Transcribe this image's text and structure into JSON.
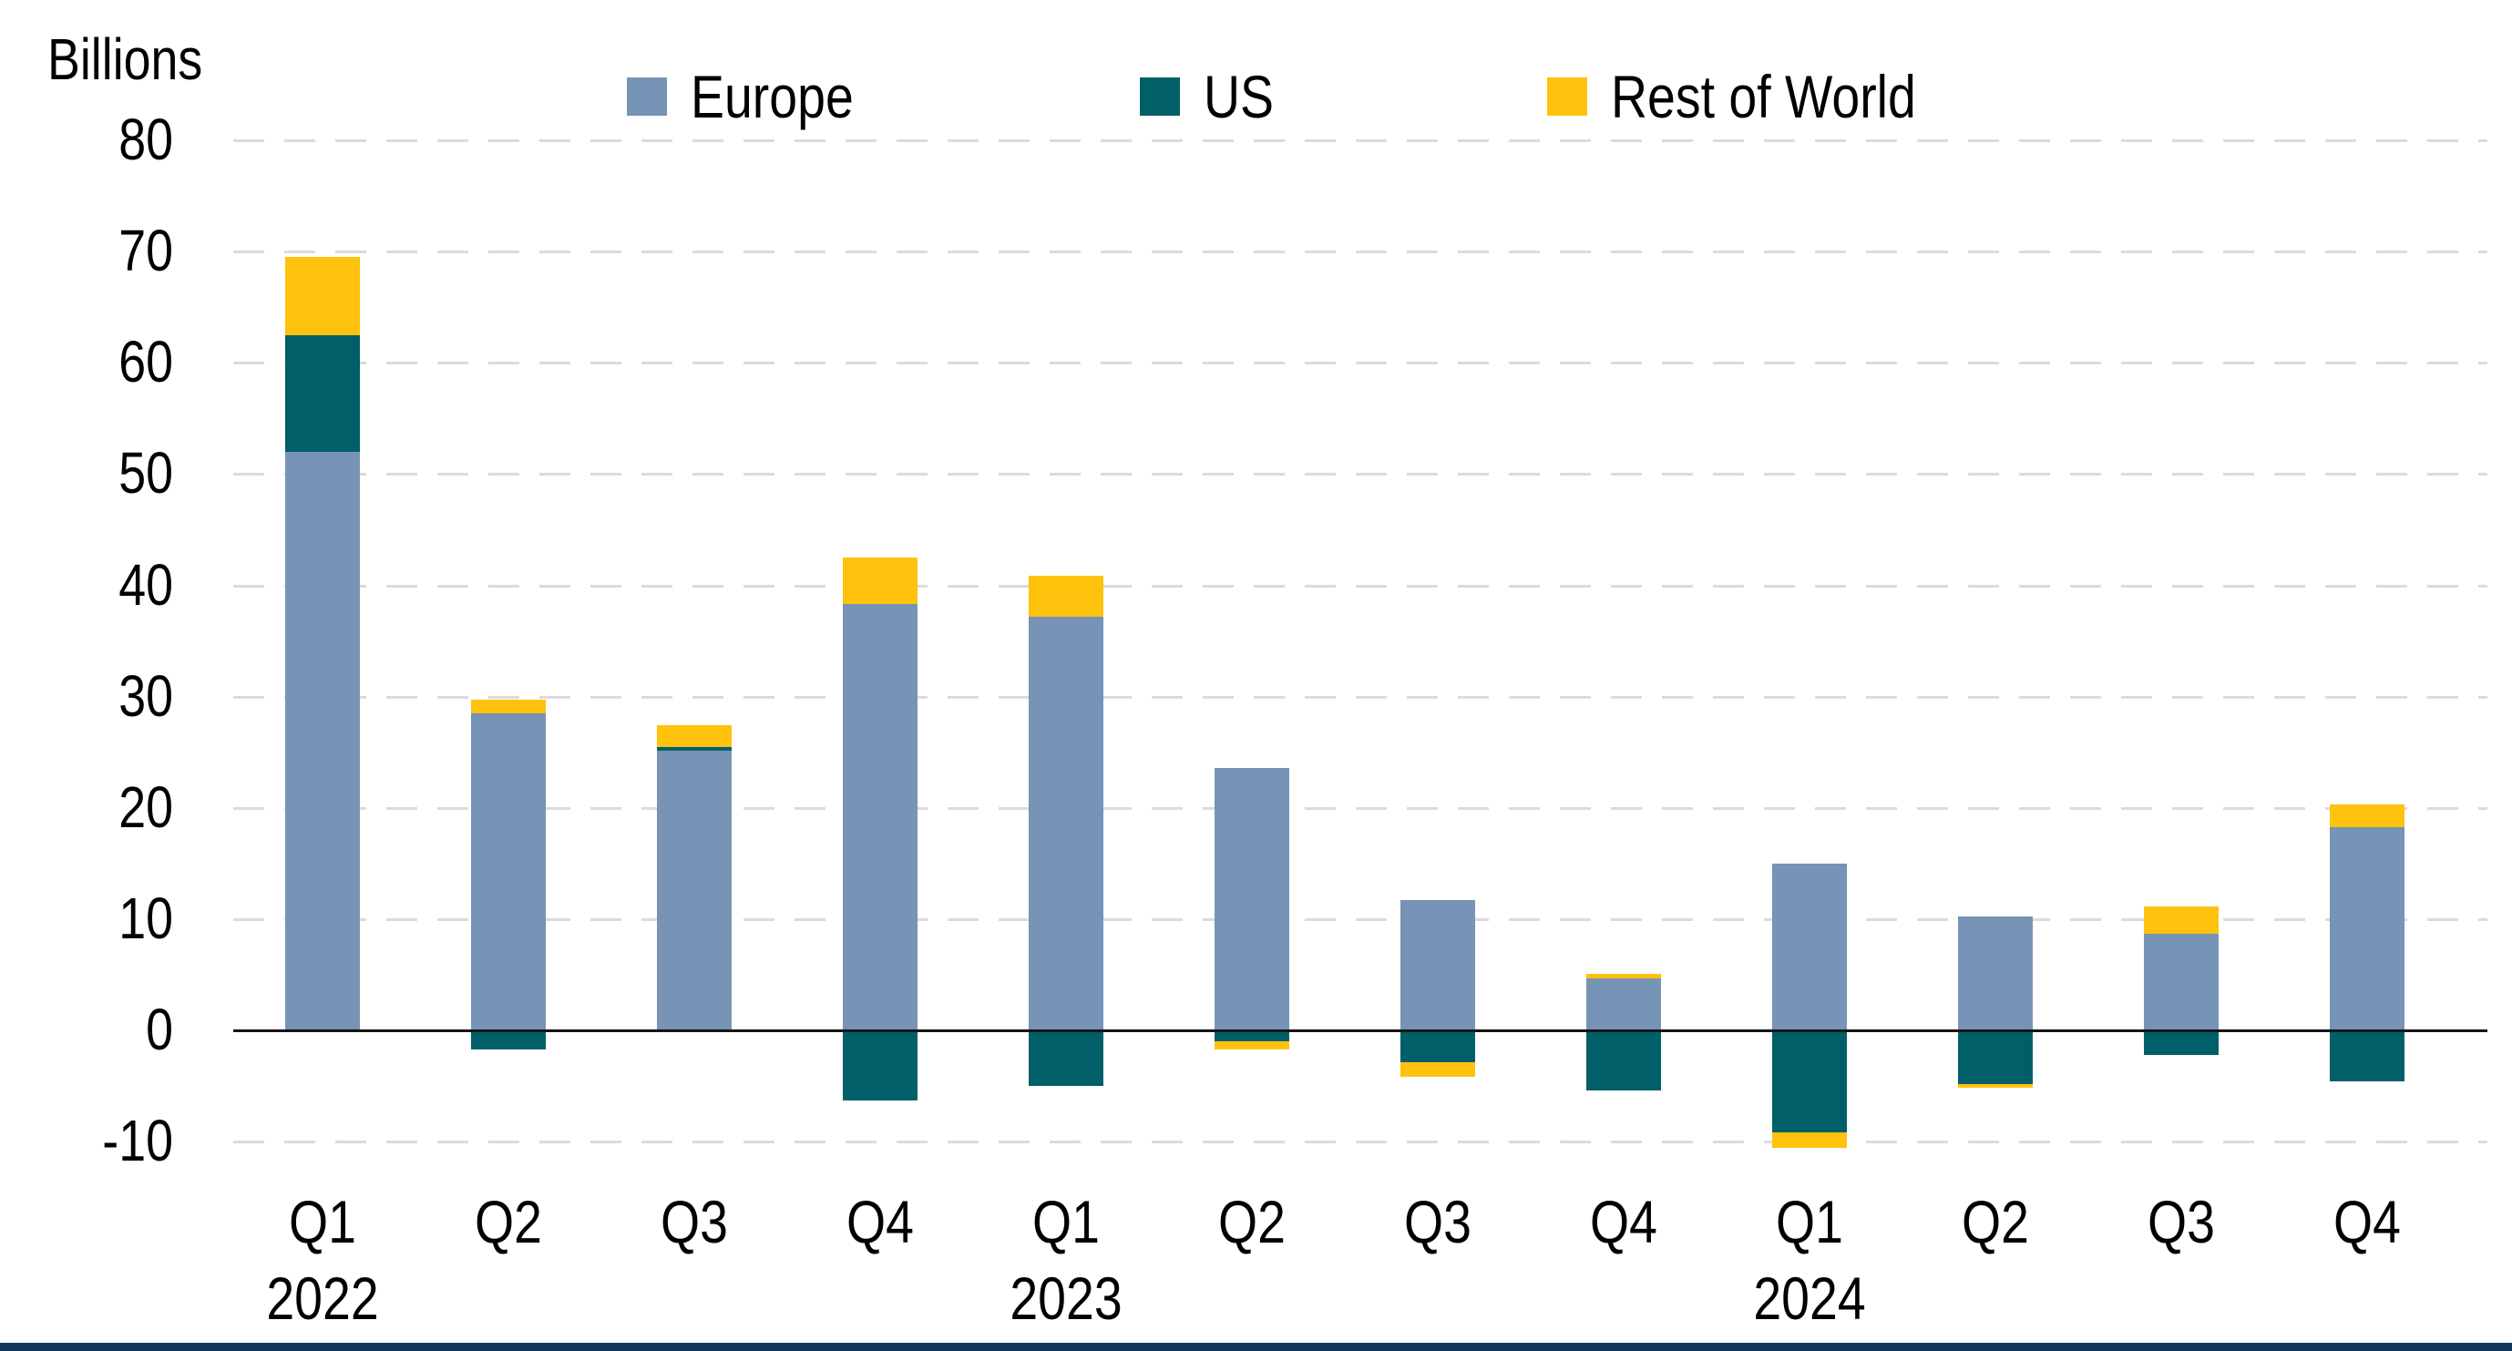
{
  "chart_data": {
    "type": "bar",
    "variant": "stacked-column",
    "unit_label": "Billions",
    "categories": [
      "Q1",
      "Q2",
      "Q3",
      "Q4",
      "Q1",
      "Q2",
      "Q3",
      "Q4",
      "Q1",
      "Q2",
      "Q3",
      "Q4"
    ],
    "year_labels": [
      {
        "text": "2022",
        "category_index": 0
      },
      {
        "text": "2023",
        "category_index": 4
      },
      {
        "text": "2024",
        "category_index": 8
      }
    ],
    "series": [
      {
        "name": "Europe",
        "color": "#7793B6",
        "values": [
          52.0,
          28.5,
          25.1,
          38.3,
          37.2,
          23.6,
          11.7,
          4.7,
          15.0,
          10.2,
          8.7,
          18.3
        ]
      },
      {
        "name": "US",
        "color": "#005F68",
        "values": [
          10.5,
          -1.7,
          0.4,
          -6.3,
          -5.0,
          -1.0,
          -2.9,
          -5.4,
          -9.2,
          -4.8,
          -2.2,
          -4.6
        ]
      },
      {
        "name": "Rest of World",
        "color": "#FFC20D",
        "values": [
          7.0,
          1.2,
          1.9,
          4.2,
          3.7,
          -0.7,
          -1.3,
          0.4,
          -1.4,
          -0.4,
          2.4,
          2.0
        ]
      }
    ],
    "y_axis": {
      "min": -10,
      "max": 80,
      "tick_step": 10,
      "ticks": [
        80,
        70,
        60,
        50,
        40,
        30,
        20,
        10,
        0,
        -10
      ]
    },
    "legend_position": "top",
    "grid": "horizontal-dashed",
    "gridline_color": "#dbdbdb",
    "zero_line_color": "#151515",
    "bottom_rule_color": "#10375C"
  }
}
